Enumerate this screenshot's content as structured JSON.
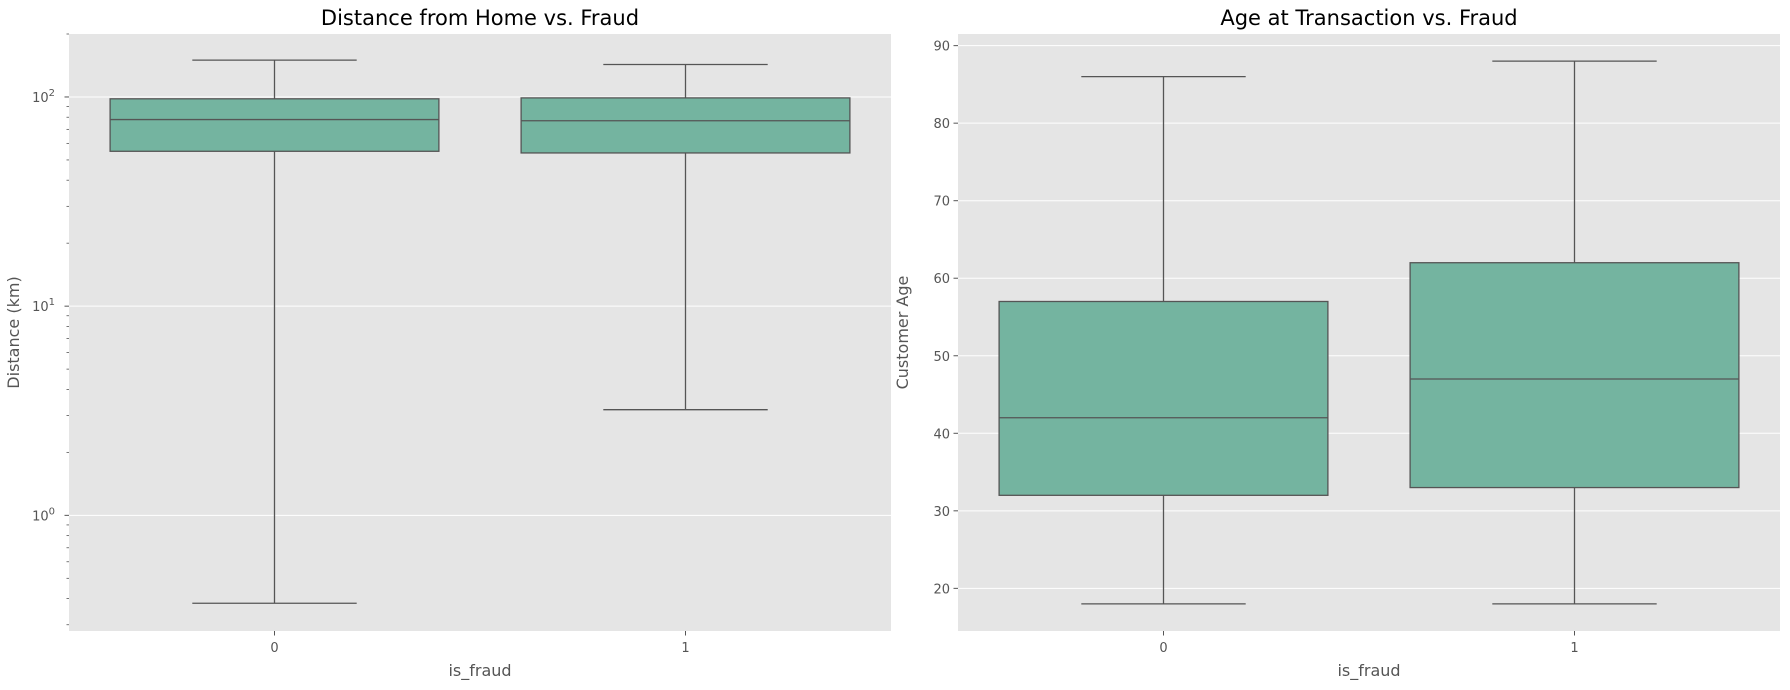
{
  "chart_data": [
    {
      "type": "box",
      "title": "Distance from Home vs. Fraud",
      "xlabel": "is_fraud",
      "ylabel": "Distance (km)",
      "yscale": "log",
      "ylim": [
        0.28,
        200
      ],
      "yticks": [
        {
          "value": 1,
          "label": "10",
          "exp": "0"
        },
        {
          "value": 10,
          "label": "10",
          "exp": "1"
        },
        {
          "value": 100,
          "label": "10",
          "exp": "2"
        }
      ],
      "categories": [
        "0",
        "1"
      ],
      "boxes": [
        {
          "category": "0",
          "whisker_low": 0.38,
          "q1": 55,
          "median": 78,
          "q3": 98,
          "whisker_high": 150
        },
        {
          "category": "1",
          "whisker_low": 3.2,
          "q1": 54,
          "median": 77,
          "q3": 99,
          "whisker_high": 143
        }
      ],
      "grid": true,
      "color": "#74b4a0"
    },
    {
      "type": "box",
      "title": "Age at Transaction vs. Fraud",
      "xlabel": "is_fraud",
      "ylabel": "Customer Age",
      "yscale": "linear",
      "ylim": [
        14.5,
        91.5
      ],
      "yticks": [
        {
          "value": 20,
          "label": "20"
        },
        {
          "value": 30,
          "label": "30"
        },
        {
          "value": 40,
          "label": "40"
        },
        {
          "value": 50,
          "label": "50"
        },
        {
          "value": 60,
          "label": "60"
        },
        {
          "value": 70,
          "label": "70"
        },
        {
          "value": 80,
          "label": "80"
        },
        {
          "value": 90,
          "label": "90"
        }
      ],
      "categories": [
        "0",
        "1"
      ],
      "boxes": [
        {
          "category": "0",
          "whisker_low": 18,
          "q1": 32,
          "median": 42,
          "q3": 57,
          "whisker_high": 86
        },
        {
          "category": "1",
          "whisker_low": 18,
          "q1": 33,
          "median": 47,
          "q3": 62,
          "whisker_high": 88
        }
      ],
      "grid": true,
      "color": "#74b4a0"
    }
  ]
}
